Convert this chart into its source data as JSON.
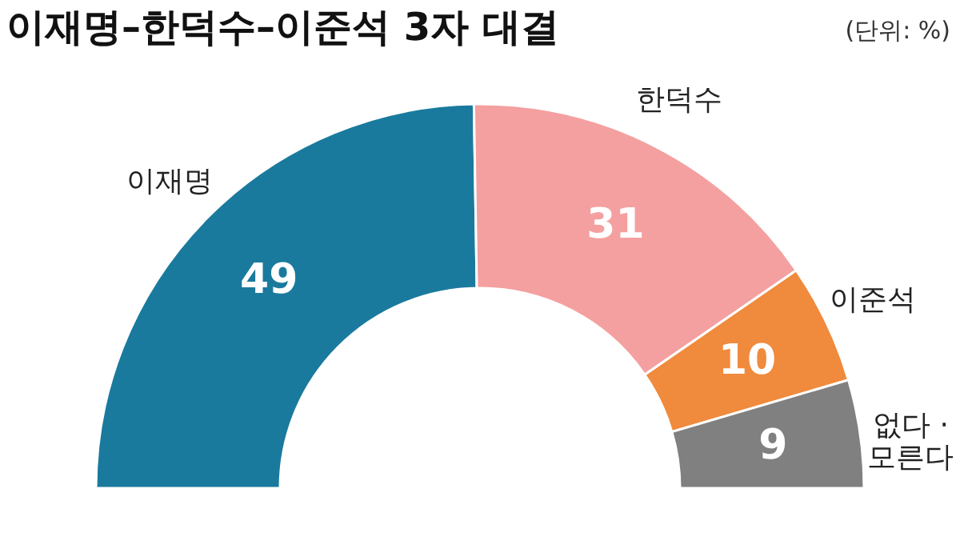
{
  "chart_data": {
    "type": "donut",
    "title": "이재명–한덕수–이준석 3자 대결",
    "annotations": [
      "(단위: %)"
    ],
    "categories": [
      "이재명",
      "한덕수",
      "이준석",
      "없다 ·\n모른다"
    ],
    "values": [
      49,
      31,
      10,
      9
    ],
    "colors": [
      "#1a7a9e",
      "#f4a0a0",
      "#f08a3c",
      "#808080"
    ],
    "data_labels": true,
    "legend": false
  }
}
